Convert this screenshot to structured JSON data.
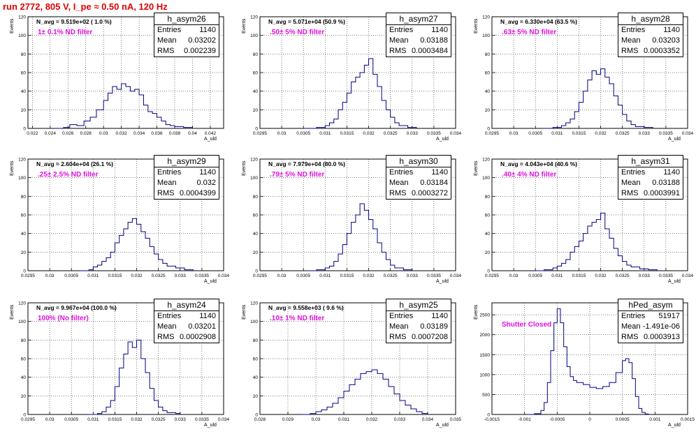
{
  "page_title": "run 2772,   805 V, I_pe ≈ 0.50 nA, 120 Hz",
  "chart_data": [
    {
      "type": "histogram",
      "name": "h_asym26",
      "title": "h_asym26",
      "stats": {
        "entries": "1140",
        "mean": "0.03202",
        "rms": "0.002239"
      },
      "n_avg_text": "N_avg = 9.519e+02 ( 1.0 %)",
      "filter_text": "1± 0.1% ND filter",
      "xlabel": "A_uld",
      "ylabel": "Events",
      "xlim": [
        0.0215,
        0.0435
      ],
      "ylim": [
        0,
        120
      ],
      "x_ticks": [
        0.022,
        0.024,
        0.026,
        0.028,
        0.03,
        0.032,
        0.034,
        0.036,
        0.038,
        0.04,
        0.042
      ],
      "y_ticks": [
        0,
        20,
        40,
        60,
        80,
        100,
        120
      ],
      "grid": true,
      "curve": [
        [
          0.0245,
          0
        ],
        [
          0.0255,
          1
        ],
        [
          0.0262,
          4
        ],
        [
          0.027,
          3
        ],
        [
          0.0278,
          8
        ],
        [
          0.0285,
          12
        ],
        [
          0.0292,
          20
        ],
        [
          0.03,
          30
        ],
        [
          0.0305,
          38
        ],
        [
          0.031,
          45
        ],
        [
          0.0315,
          42
        ],
        [
          0.032,
          48
        ],
        [
          0.0325,
          45
        ],
        [
          0.033,
          40
        ],
        [
          0.0335,
          42
        ],
        [
          0.034,
          36
        ],
        [
          0.0345,
          25
        ],
        [
          0.035,
          18
        ],
        [
          0.0355,
          16
        ],
        [
          0.036,
          12
        ],
        [
          0.0365,
          8
        ],
        [
          0.037,
          4
        ],
        [
          0.0375,
          3
        ],
        [
          0.038,
          2
        ],
        [
          0.039,
          1
        ],
        [
          0.04,
          0
        ]
      ]
    },
    {
      "type": "histogram",
      "name": "h_asym27",
      "title": "h_asym27",
      "stats": {
        "entries": "1140",
        "mean": "0.03188",
        "rms": "0.0003484"
      },
      "n_avg_text": "N_avg = 5.071e+04 (50.9 %)",
      "filter_text": ".50± 5% ND filter",
      "xlabel": "A_uld",
      "ylabel": "Events",
      "xlim": [
        0.0295,
        0.034
      ],
      "ylim": [
        0,
        120
      ],
      "x_ticks": [
        0.0295,
        0.03,
        0.0305,
        0.031,
        0.0315,
        0.032,
        0.0325,
        0.033,
        0.0335,
        0.034
      ],
      "y_ticks": [
        0,
        20,
        40,
        60,
        80,
        100,
        120
      ],
      "grid": true,
      "curve": [
        [
          0.0305,
          0
        ],
        [
          0.0308,
          1
        ],
        [
          0.031,
          3
        ],
        [
          0.0311,
          6
        ],
        [
          0.0312,
          10
        ],
        [
          0.0313,
          20
        ],
        [
          0.0314,
          28
        ],
        [
          0.0315,
          38
        ],
        [
          0.0316,
          50
        ],
        [
          0.0317,
          55
        ],
        [
          0.0318,
          60
        ],
        [
          0.0319,
          68
        ],
        [
          0.032,
          75
        ],
        [
          0.0321,
          58
        ],
        [
          0.0322,
          45
        ],
        [
          0.0323,
          30
        ],
        [
          0.0324,
          20
        ],
        [
          0.0325,
          12
        ],
        [
          0.0326,
          6
        ],
        [
          0.0327,
          3
        ],
        [
          0.0329,
          1
        ],
        [
          0.0331,
          0
        ]
      ]
    },
    {
      "type": "histogram",
      "name": "h_asym28",
      "title": "h_asym28",
      "stats": {
        "entries": "1140",
        "mean": "0.03203",
        "rms": "0.0003352"
      },
      "n_avg_text": "N_avg = 6.330e+04 (63.5 %)",
      "filter_text": ".63± 5% ND filter",
      "xlabel": "A_uld",
      "ylabel": "Events",
      "xlim": [
        0.0295,
        0.034
      ],
      "ylim": [
        0,
        120
      ],
      "x_ticks": [
        0.0295,
        0.03,
        0.0305,
        0.031,
        0.0315,
        0.032,
        0.0325,
        0.033,
        0.0335,
        0.034
      ],
      "y_ticks": [
        0,
        20,
        40,
        60,
        80,
        100,
        120
      ],
      "grid": true,
      "curve": [
        [
          0.0307,
          0
        ],
        [
          0.0309,
          1
        ],
        [
          0.0311,
          3
        ],
        [
          0.0312,
          6
        ],
        [
          0.0313,
          10
        ],
        [
          0.0314,
          18
        ],
        [
          0.0315,
          28
        ],
        [
          0.0316,
          40
        ],
        [
          0.0317,
          52
        ],
        [
          0.0318,
          62
        ],
        [
          0.0319,
          58
        ],
        [
          0.032,
          64
        ],
        [
          0.0321,
          55
        ],
        [
          0.0322,
          48
        ],
        [
          0.0323,
          35
        ],
        [
          0.0324,
          25
        ],
        [
          0.0325,
          15
        ],
        [
          0.0326,
          8
        ],
        [
          0.0327,
          4
        ],
        [
          0.0328,
          2
        ],
        [
          0.033,
          1
        ],
        [
          0.0332,
          0
        ]
      ]
    },
    {
      "type": "histogram",
      "name": "h_asym29",
      "title": "h_asym29",
      "stats": {
        "entries": "1140",
        "mean": "0.032",
        "rms": "0.0004399"
      },
      "n_avg_text": "N_avg = 2.604e+04 (26.1 %)",
      "filter_text": ".25± 2.5% ND filter",
      "xlabel": "A_uld",
      "ylabel": "Events",
      "xlim": [
        0.0295,
        0.034
      ],
      "ylim": [
        0,
        120
      ],
      "x_ticks": [
        0.0295,
        0.03,
        0.0305,
        0.031,
        0.0315,
        0.032,
        0.0325,
        0.033,
        0.0335,
        0.034
      ],
      "y_ticks": [
        0,
        20,
        40,
        60,
        80,
        100,
        120
      ],
      "grid": true,
      "curve": [
        [
          0.0307,
          0
        ],
        [
          0.0309,
          1
        ],
        [
          0.031,
          4
        ],
        [
          0.0311,
          6
        ],
        [
          0.0312,
          10
        ],
        [
          0.0313,
          14
        ],
        [
          0.0314,
          20
        ],
        [
          0.0315,
          30
        ],
        [
          0.0316,
          38
        ],
        [
          0.0317,
          45
        ],
        [
          0.0318,
          52
        ],
        [
          0.0319,
          56
        ],
        [
          0.032,
          50
        ],
        [
          0.0321,
          42
        ],
        [
          0.0322,
          35
        ],
        [
          0.0323,
          26
        ],
        [
          0.0324,
          18
        ],
        [
          0.0325,
          12
        ],
        [
          0.0326,
          8
        ],
        [
          0.0327,
          5
        ],
        [
          0.0329,
          3
        ],
        [
          0.0331,
          1
        ],
        [
          0.0333,
          0
        ]
      ]
    },
    {
      "type": "histogram",
      "name": "h_asym30",
      "title": "h_asym30",
      "stats": {
        "entries": "1140",
        "mean": "0.03184",
        "rms": "0.0003272"
      },
      "n_avg_text": "N_avg = 7.979e+04 (80.0 %)",
      "filter_text": ".79± 5% ND filter",
      "xlabel": "A_uld",
      "ylabel": "Events",
      "xlim": [
        0.0295,
        0.034
      ],
      "ylim": [
        0,
        120
      ],
      "x_ticks": [
        0.0295,
        0.03,
        0.0305,
        0.031,
        0.0315,
        0.032,
        0.0325,
        0.033,
        0.0335,
        0.034
      ],
      "y_ticks": [
        0,
        20,
        40,
        60,
        80,
        100,
        120
      ],
      "grid": true,
      "curve": [
        [
          0.0306,
          0
        ],
        [
          0.0308,
          1
        ],
        [
          0.031,
          3
        ],
        [
          0.0311,
          5
        ],
        [
          0.0312,
          10
        ],
        [
          0.0313,
          18
        ],
        [
          0.0314,
          28
        ],
        [
          0.0315,
          40
        ],
        [
          0.0316,
          52
        ],
        [
          0.0317,
          60
        ],
        [
          0.0318,
          72
        ],
        [
          0.0319,
          65
        ],
        [
          0.032,
          55
        ],
        [
          0.0321,
          45
        ],
        [
          0.0322,
          30
        ],
        [
          0.0323,
          20
        ],
        [
          0.0324,
          12
        ],
        [
          0.0325,
          6
        ],
        [
          0.0326,
          3
        ],
        [
          0.0328,
          1
        ],
        [
          0.033,
          0
        ]
      ]
    },
    {
      "type": "histogram",
      "name": "h_asym31",
      "title": "h_asym31",
      "stats": {
        "entries": "1140",
        "mean": "0.03188",
        "rms": "0.0003991"
      },
      "n_avg_text": "N_avg = 4.043e+04 (40.6 %)",
      "filter_text": ".40± 4% ND filter",
      "xlabel": "A_uld",
      "ylabel": "Events",
      "xlim": [
        0.0295,
        0.034
      ],
      "ylim": [
        0,
        120
      ],
      "x_ticks": [
        0.0295,
        0.03,
        0.0305,
        0.031,
        0.0315,
        0.032,
        0.0325,
        0.033,
        0.0335,
        0.034
      ],
      "y_ticks": [
        0,
        20,
        40,
        60,
        80,
        100,
        120
      ],
      "grid": true,
      "curve": [
        [
          0.0305,
          0
        ],
        [
          0.0307,
          1
        ],
        [
          0.0309,
          3
        ],
        [
          0.031,
          5
        ],
        [
          0.0311,
          8
        ],
        [
          0.0312,
          12
        ],
        [
          0.0313,
          20
        ],
        [
          0.0314,
          26
        ],
        [
          0.0315,
          32
        ],
        [
          0.0316,
          40
        ],
        [
          0.0317,
          48
        ],
        [
          0.0318,
          52
        ],
        [
          0.0319,
          55
        ],
        [
          0.032,
          62
        ],
        [
          0.0321,
          45
        ],
        [
          0.0322,
          35
        ],
        [
          0.0323,
          24
        ],
        [
          0.0324,
          16
        ],
        [
          0.0325,
          10
        ],
        [
          0.0326,
          6
        ],
        [
          0.0327,
          4
        ],
        [
          0.0329,
          2
        ],
        [
          0.0331,
          1
        ],
        [
          0.0333,
          0
        ]
      ]
    },
    {
      "type": "histogram",
      "name": "h_asym24",
      "title": "h_asym24",
      "stats": {
        "entries": "1140",
        "mean": "0.03201",
        "rms": "0.0002908"
      },
      "n_avg_text": "N_avg = 9.967e+04 (100.0 %)",
      "filter_text": "100% (No filter)",
      "xlabel": "A_uld",
      "ylabel": "Events",
      "xlim": [
        0.0295,
        0.034
      ],
      "ylim": [
        0,
        120
      ],
      "x_ticks": [
        0.0295,
        0.03,
        0.0305,
        0.031,
        0.0315,
        0.032,
        0.0325,
        0.033,
        0.0335,
        0.034
      ],
      "y_ticks": [
        0,
        20,
        40,
        60,
        80,
        100,
        120
      ],
      "grid": true,
      "curve": [
        [
          0.0309,
          0
        ],
        [
          0.0311,
          1
        ],
        [
          0.0312,
          3
        ],
        [
          0.0313,
          8
        ],
        [
          0.0314,
          15
        ],
        [
          0.0315,
          30
        ],
        [
          0.0316,
          50
        ],
        [
          0.0317,
          65
        ],
        [
          0.0318,
          78
        ],
        [
          0.0319,
          72
        ],
        [
          0.032,
          80
        ],
        [
          0.0321,
          60
        ],
        [
          0.0322,
          45
        ],
        [
          0.0323,
          28
        ],
        [
          0.0324,
          15
        ],
        [
          0.0325,
          8
        ],
        [
          0.0326,
          4
        ],
        [
          0.0327,
          2
        ],
        [
          0.0329,
          1
        ],
        [
          0.033,
          0
        ]
      ]
    },
    {
      "type": "histogram",
      "name": "h_asym25",
      "title": "h_asym25",
      "stats": {
        "entries": "1140",
        "mean": "0.03189",
        "rms": "0.0007208"
      },
      "n_avg_text": "N_avg = 9.558e+03 ( 9.6 %)",
      "filter_text": ".10± 1% ND filter",
      "xlabel": "A_uld",
      "ylabel": "Events",
      "xlim": [
        0.028,
        0.035
      ],
      "ylim": [
        0,
        120
      ],
      "x_ticks": [
        0.028,
        0.029,
        0.03,
        0.031,
        0.032,
        0.033,
        0.034,
        0.035
      ],
      "y_ticks": [
        0,
        20,
        40,
        60,
        80,
        100,
        120
      ],
      "grid": true,
      "curve": [
        [
          0.0295,
          0
        ],
        [
          0.0298,
          1
        ],
        [
          0.03,
          3
        ],
        [
          0.0302,
          5
        ],
        [
          0.0304,
          8
        ],
        [
          0.0306,
          12
        ],
        [
          0.0308,
          18
        ],
        [
          0.031,
          25
        ],
        [
          0.0312,
          32
        ],
        [
          0.0314,
          38
        ],
        [
          0.0316,
          44
        ],
        [
          0.0318,
          46
        ],
        [
          0.032,
          48
        ],
        [
          0.0322,
          44
        ],
        [
          0.0324,
          38
        ],
        [
          0.0326,
          30
        ],
        [
          0.0328,
          22
        ],
        [
          0.033,
          15
        ],
        [
          0.0332,
          10
        ],
        [
          0.0334,
          6
        ],
        [
          0.0336,
          3
        ],
        [
          0.0338,
          1
        ],
        [
          0.034,
          0
        ]
      ]
    },
    {
      "type": "histogram",
      "name": "hPed_asym",
      "title": "hPed_asym",
      "stats": {
        "entries": "51917",
        "mean": "-1.491e-06",
        "rms": "0.0003913"
      },
      "filter_text": "Shutter Closed",
      "xlabel": "A_uld",
      "ylabel": "Events",
      "xlim": [
        -0.0015,
        0.0015
      ],
      "ylim": [
        0,
        2800
      ],
      "x_ticks": [
        -0.0015,
        -0.001,
        -0.0005,
        0,
        0.0005,
        0.001,
        0.0015
      ],
      "x_tick_labels": [
        "-0.0015",
        "-0.001",
        "-0.0005",
        "0",
        "0.0005",
        "0.001",
        "0.0015"
      ],
      "y_ticks": [
        0,
        500,
        1000,
        1500,
        2000,
        2500
      ],
      "grid": true,
      "curve": [
        [
          -0.00095,
          0
        ],
        [
          -0.00085,
          20
        ],
        [
          -0.00075,
          100
        ],
        [
          -0.0007,
          300
        ],
        [
          -0.00065,
          800
        ],
        [
          -0.0006,
          1600
        ],
        [
          -0.00055,
          2300
        ],
        [
          -0.0005,
          2650
        ],
        [
          -0.00045,
          2300
        ],
        [
          -0.0004,
          1700
        ],
        [
          -0.00035,
          1200
        ],
        [
          -0.0003,
          950
        ],
        [
          -0.00025,
          850
        ],
        [
          -0.0002,
          800
        ],
        [
          -0.0001,
          750
        ],
        [
          0,
          680
        ],
        [
          0.0001,
          650
        ],
        [
          0.0002,
          700
        ],
        [
          0.0003,
          800
        ],
        [
          0.0004,
          1050
        ],
        [
          0.0005,
          1350
        ],
        [
          0.00055,
          1400
        ],
        [
          0.0006,
          1300
        ],
        [
          0.00065,
          900
        ],
        [
          0.0007,
          450
        ],
        [
          0.00075,
          150
        ],
        [
          0.0008,
          50
        ],
        [
          0.00085,
          10
        ],
        [
          0.0009,
          0
        ]
      ]
    }
  ]
}
